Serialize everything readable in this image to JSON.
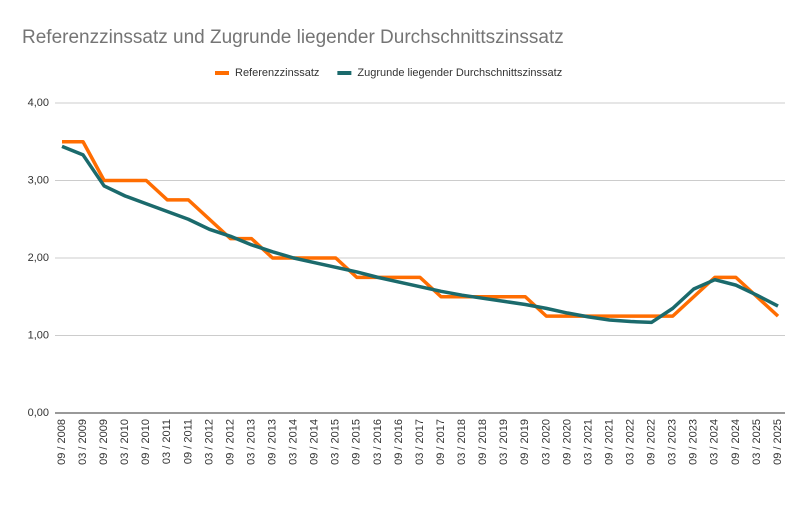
{
  "chart_data": {
    "type": "line",
    "title": "Referenzzinssatz und Zugrunde liegender Durchschnittszinssatz",
    "categories": [
      "09 / 2008",
      "03 / 2009",
      "09 / 2009",
      "03 / 2010",
      "09 / 2010",
      "03 / 2011",
      "09 / 2011",
      "03 / 2012",
      "09 / 2012",
      "03 / 2013",
      "09 / 2013",
      "03 / 2014",
      "09 / 2014",
      "03 / 2015",
      "09 / 2015",
      "03 / 2016",
      "09 / 2016",
      "03 / 2017",
      "09 / 2017",
      "03 / 2018",
      "09 / 2018",
      "03 / 2019",
      "09 / 2019",
      "03 / 2020",
      "09 / 2020",
      "03 / 2021",
      "09 / 2021",
      "03 / 2022",
      "09 / 2022",
      "03 / 2023",
      "09 / 2023",
      "03 / 2024",
      "09 / 2024",
      "03 / 2025",
      "09 / 2025"
    ],
    "series": [
      {
        "name": "Referenzzinssatz",
        "color": "#ff6d01",
        "values": [
          3.5,
          3.5,
          3.0,
          3.0,
          3.0,
          2.75,
          2.75,
          2.5,
          2.25,
          2.25,
          2.0,
          2.0,
          2.0,
          2.0,
          1.75,
          1.75,
          1.75,
          1.75,
          1.5,
          1.5,
          1.5,
          1.5,
          1.5,
          1.25,
          1.25,
          1.25,
          1.25,
          1.25,
          1.25,
          1.25,
          1.5,
          1.75,
          1.75,
          1.5,
          1.25
        ]
      },
      {
        "name": "Zugrunde liegender Durchschnittszinssatz",
        "color": "#1b6a6c",
        "values": [
          3.44,
          3.33,
          2.93,
          2.8,
          2.7,
          2.6,
          2.5,
          2.37,
          2.28,
          2.17,
          2.08,
          2.0,
          1.94,
          1.88,
          1.82,
          1.75,
          1.69,
          1.63,
          1.57,
          1.52,
          1.48,
          1.44,
          1.4,
          1.35,
          1.29,
          1.24,
          1.2,
          1.18,
          1.17,
          1.35,
          1.6,
          1.72,
          1.65,
          1.52,
          1.38
        ]
      }
    ],
    "ylim": [
      0,
      4
    ],
    "yticks": [
      {
        "value": 0,
        "label": "0,00"
      },
      {
        "value": 1,
        "label": "1,00"
      },
      {
        "value": 2,
        "label": "2,00"
      },
      {
        "value": 3,
        "label": "3,00"
      },
      {
        "value": 4,
        "label": "4,00"
      }
    ],
    "grid": true,
    "legend": "top"
  }
}
